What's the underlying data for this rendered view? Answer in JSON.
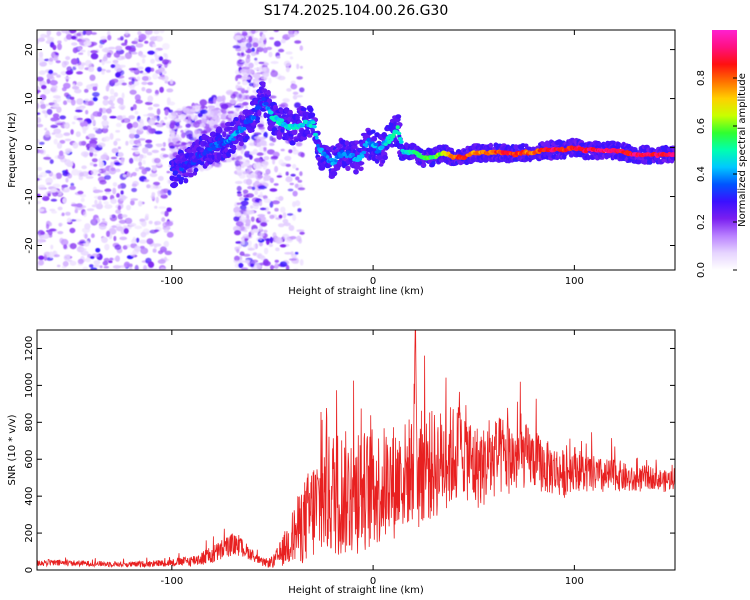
{
  "title": "S174.2025.104.00.26.G30",
  "chart_data": [
    {
      "type": "heatmap",
      "xlabel": "Height of straight line (km)",
      "ylabel": "Frequency (Hz)",
      "xlim": [
        -167,
        150
      ],
      "ylim": [
        -25,
        24
      ],
      "x_ticks": [
        -100,
        0,
        100
      ],
      "y_ticks": [
        -20,
        -10,
        0,
        10,
        20
      ],
      "colorbar": {
        "label": "Normalized spectral amplitude",
        "range": [
          0,
          1
        ],
        "ticks": [
          "0.0",
          "0.2",
          "0.4",
          "0.6",
          "0.8"
        ],
        "colormap": [
          "#ffffff",
          "#e6d4ff",
          "#b980ff",
          "#7a1ff0",
          "#3a10ff",
          "#0055ff",
          "#00c8ff",
          "#00ffb0",
          "#30ff30",
          "#c8ff00",
          "#ffd000",
          "#ff7000",
          "#ff1010",
          "#ff1080",
          "#ff20d0"
        ]
      },
      "ridge": {
        "x": [
          -100,
          -95,
          -90,
          -85,
          -80,
          -75,
          -70,
          -65,
          -60,
          -55,
          -52,
          -50,
          -45,
          -40,
          -35,
          -30,
          -27,
          -24,
          -20,
          -15,
          -10,
          -6,
          -3,
          0,
          3,
          6,
          9,
          12,
          15,
          20,
          25,
          30,
          35,
          40,
          45,
          50,
          55,
          60,
          65,
          70,
          75,
          80,
          85,
          90,
          95,
          100,
          105,
          110,
          115,
          120,
          125,
          130,
          135,
          140,
          145,
          150
        ],
        "y": [
          -5,
          -4,
          -3,
          -1,
          0,
          1,
          2,
          4,
          6,
          10,
          8,
          6,
          5,
          4,
          5,
          5,
          0,
          -2,
          -3,
          -1,
          -2,
          -2,
          1,
          1,
          -1,
          1,
          2,
          4,
          -1,
          -1,
          -2,
          -2,
          -1,
          -2,
          -2,
          -1,
          -1,
          -1,
          -1,
          -1.5,
          -1,
          -1,
          -0.5,
          -0.5,
          -0.5,
          0,
          -0.5,
          -0.5,
          -0.5,
          -0.5,
          -1,
          -1.5,
          -1.5,
          -1.5,
          -1.5,
          -1.5
        ],
        "amplitude": [
          0.35,
          0.35,
          0.35,
          0.35,
          0.4,
          0.4,
          0.45,
          0.45,
          0.4,
          0.35,
          0.45,
          0.5,
          0.5,
          0.5,
          0.5,
          0.5,
          0.45,
          0.45,
          0.45,
          0.4,
          0.45,
          0.45,
          0.45,
          0.45,
          0.45,
          0.5,
          0.5,
          0.55,
          0.5,
          0.55,
          0.6,
          0.6,
          0.7,
          0.85,
          0.9,
          0.8,
          0.85,
          0.85,
          0.9,
          0.9,
          0.85,
          0.85,
          0.9,
          0.95,
          0.9,
          0.9,
          0.95,
          0.95,
          0.95,
          0.95,
          0.9,
          0.95,
          0.95,
          0.95,
          0.95,
          0.95
        ]
      }
    },
    {
      "type": "line",
      "xlabel": "Height of straight line (km)",
      "ylabel": "SNR (10 * v/v)",
      "xlim": [
        -167,
        150
      ],
      "ylim": [
        0,
        1300
      ],
      "x_ticks": [
        -100,
        0,
        100
      ],
      "y_ticks": [
        0,
        200,
        400,
        600,
        800,
        1000,
        1200
      ],
      "color": "#e82020",
      "envelope": {
        "x": [
          -167,
          -140,
          -120,
          -100,
          -90,
          -80,
          -75,
          -70,
          -65,
          -60,
          -55,
          -50,
          -45,
          -40,
          -35,
          -30,
          -25,
          -20,
          -15,
          -10,
          -5,
          0,
          5,
          10,
          15,
          20,
          21,
          22,
          25,
          30,
          35,
          40,
          45,
          50,
          55,
          60,
          65,
          70,
          75,
          80,
          85,
          90,
          95,
          100,
          105,
          110,
          115,
          120,
          125,
          130,
          135,
          140,
          145,
          150
        ],
        "y": [
          40,
          35,
          30,
          40,
          50,
          80,
          110,
          140,
          120,
          80,
          40,
          40,
          100,
          180,
          250,
          320,
          380,
          420,
          420,
          400,
          430,
          440,
          460,
          480,
          500,
          560,
          1300,
          500,
          580,
          560,
          600,
          620,
          660,
          560,
          560,
          600,
          620,
          600,
          620,
          600,
          560,
          540,
          520,
          560,
          520,
          520,
          500,
          520,
          500,
          480,
          500,
          500,
          480,
          500
        ],
        "spread": [
          20,
          15,
          15,
          20,
          30,
          50,
          60,
          60,
          50,
          30,
          20,
          30,
          80,
          150,
          220,
          280,
          320,
          350,
          350,
          330,
          330,
          330,
          320,
          320,
          300,
          300,
          0,
          320,
          320,
          300,
          280,
          280,
          260,
          240,
          220,
          220,
          220,
          200,
          180,
          160,
          150,
          140,
          130,
          120,
          110,
          100,
          100,
          90,
          80,
          70,
          70,
          60,
          60,
          60
        ]
      }
    }
  ]
}
